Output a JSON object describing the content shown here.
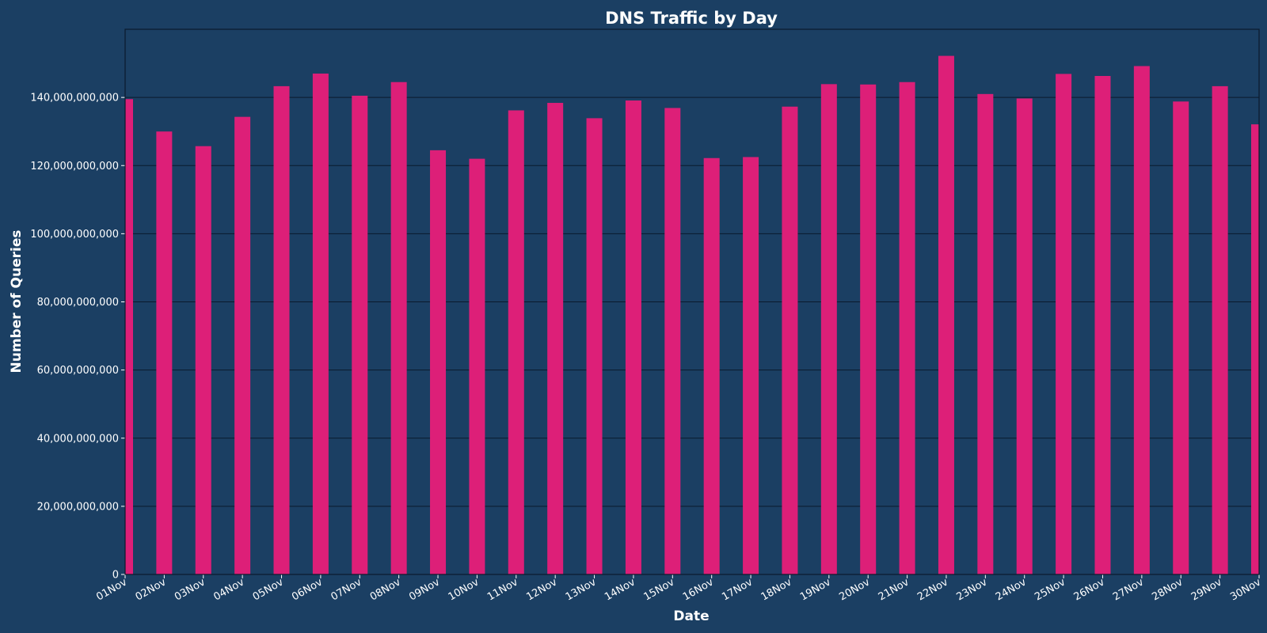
{
  "chart_data": {
    "type": "bar",
    "title": "DNS Traffic by Day",
    "xlabel": "Date",
    "ylabel": "Number of Queries",
    "ylim": [
      0,
      160000000000
    ],
    "y_ticks": [
      0,
      20000000000,
      40000000000,
      60000000000,
      80000000000,
      100000000000,
      120000000000,
      140000000000
    ],
    "y_tick_labels": [
      "0",
      "20,000,000,000",
      "40,000,000,000",
      "60,000,000,000",
      "80,000,000,000",
      "100,000,000,000",
      "120,000,000,000",
      "140,000,000,000"
    ],
    "categories": [
      "01Nov",
      "02Nov",
      "03Nov",
      "04Nov",
      "05Nov",
      "06Nov",
      "07Nov",
      "08Nov",
      "09Nov",
      "10Nov",
      "11Nov",
      "12Nov",
      "13Nov",
      "14Nov",
      "15Nov",
      "16Nov",
      "17Nov",
      "18Nov",
      "19Nov",
      "20Nov",
      "21Nov",
      "22Nov",
      "23Nov",
      "24Nov",
      "25Nov",
      "26Nov",
      "27Nov",
      "28Nov",
      "29Nov",
      "30Nov"
    ],
    "values": [
      139500000000,
      130000000000,
      125700000000,
      134300000000,
      143300000000,
      147000000000,
      140500000000,
      144500000000,
      124500000000,
      122000000000,
      136200000000,
      138400000000,
      133900000000,
      139100000000,
      136900000000,
      122200000000,
      122500000000,
      137300000000,
      143900000000,
      143800000000,
      144500000000,
      152200000000,
      141000000000,
      139700000000,
      146900000000,
      146300000000,
      149200000000,
      138800000000,
      143300000000,
      132100000000
    ],
    "grid": "horizontal",
    "colors": {
      "background": "#1b3f63",
      "bar": "#dd1f78",
      "grid": "#0b1a2c",
      "text": "#ffffff"
    }
  }
}
